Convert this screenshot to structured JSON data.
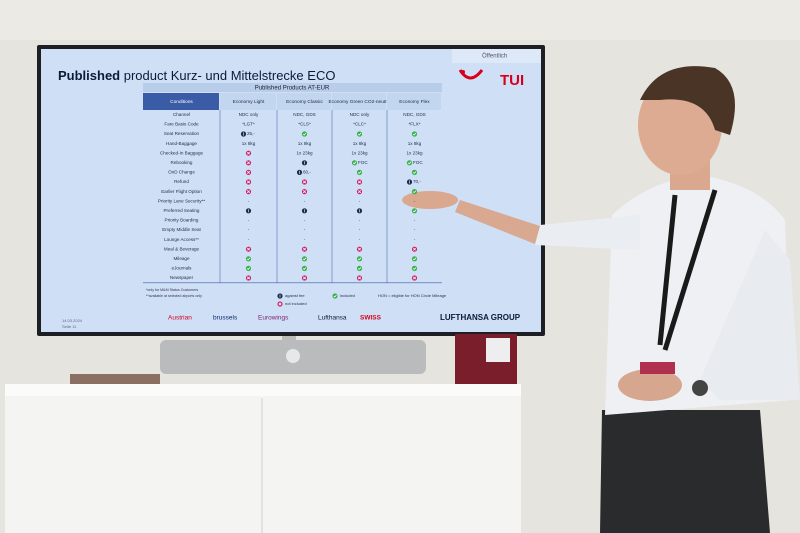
{
  "screen": {
    "tag": "Öffentlich",
    "brand": "TUI",
    "title_bold": "Published",
    "title": "product Kurz- und Mittelstrecke ECO",
    "table_caption": "Published Products AT-EUR",
    "table": {
      "header": [
        "Conditions",
        "Economy Light",
        "Economy Classic",
        "Economy Green CO2-neutral",
        "Economy Flex"
      ],
      "rows": [
        [
          "Channel",
          "NDC only",
          "NDC, GDS",
          "NDC only",
          "NDC, GDS"
        ],
        [
          "Fare Basis Code",
          "*LGT*",
          "*CLS*",
          "*CLC*",
          "*FLX*"
        ],
        [
          "Seat Reservation",
          {
            "icon": "against fee",
            "text": "25,-"
          },
          {
            "icon": "included"
          },
          {
            "icon": "included"
          },
          {
            "icon": "included"
          }
        ],
        [
          "Hand-Baggage",
          "1x 8kg",
          "1x 8kg",
          "1x 8kg",
          "1x 8kg"
        ],
        [
          "Checked-In Baggage",
          {
            "icon": "not included"
          },
          "1x 23kg",
          "1x 23kg",
          "1x 23kg"
        ],
        [
          "Rebooking",
          {
            "icon": "not included"
          },
          {
            "icon": "against fee"
          },
          {
            "icon": "included",
            "text": "FOC"
          },
          {
            "icon": "included",
            "text": "FOC"
          }
        ],
        [
          "OnD Change",
          {
            "icon": "not included"
          },
          {
            "icon": "against fee",
            "text": "60,-"
          },
          {
            "icon": "included"
          },
          {
            "icon": "included"
          }
        ],
        [
          "Refund",
          {
            "icon": "not included"
          },
          {
            "icon": "not included"
          },
          {
            "icon": "not included"
          },
          {
            "icon": "against fee",
            "text": "70,-"
          }
        ],
        [
          "Earlier Flight Option",
          {
            "icon": "not included"
          },
          {
            "icon": "not included"
          },
          {
            "icon": "not included"
          },
          {
            "icon": "included"
          }
        ],
        [
          "Priority Lane Security**",
          "-",
          "-",
          "-",
          "-"
        ],
        [
          "Preferred Seating",
          {
            "icon": "against fee"
          },
          {
            "icon": "against fee"
          },
          {
            "icon": "against fee"
          },
          {
            "icon": "included"
          }
        ],
        [
          "Priority Boarding",
          "-",
          "-",
          "-",
          "-"
        ],
        [
          "Empty Middle Seat",
          "-",
          "-",
          "-",
          "-"
        ],
        [
          "Lounge Access**",
          "-",
          "-",
          "-",
          "-"
        ],
        [
          "Meal & Beverage",
          {
            "icon": "not included"
          },
          {
            "icon": "not included"
          },
          {
            "icon": "not included"
          },
          {
            "icon": "not included"
          }
        ],
        [
          "Mileage",
          {
            "icon": "included"
          },
          {
            "icon": "included"
          },
          {
            "icon": "included"
          },
          {
            "icon": "included"
          }
        ],
        [
          "eJournals",
          {
            "icon": "included"
          },
          {
            "icon": "included"
          },
          {
            "icon": "included"
          },
          {
            "icon": "included"
          }
        ],
        [
          "Newspaper",
          {
            "icon": "not included"
          },
          {
            "icon": "not included"
          },
          {
            "icon": "not included"
          },
          {
            "icon": "not included"
          }
        ]
      ]
    },
    "footnotes": [
      "*only for M&M Status Customers",
      "**available at selected airports only"
    ],
    "legend": [
      {
        "icon": "against fee",
        "text": "against fee"
      },
      {
        "icon": "included",
        "text": "included"
      },
      {
        "icon": "not included",
        "text": "not included"
      },
      {
        "text": "HON = eligible for HON Circle Mileage"
      }
    ],
    "date": "14.03.2024",
    "page": "Seite 11",
    "airlines": [
      "Austrian",
      "brussels",
      "Eurowings",
      "Lufthansa",
      "SWISS"
    ],
    "group": "LUFTHANSA GROUP"
  }
}
